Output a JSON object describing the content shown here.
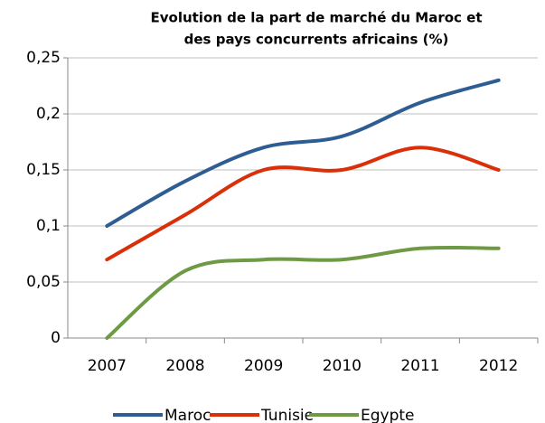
{
  "chart_data": {
    "type": "line",
    "title": [
      "Evolution de la part de marché du Maroc et",
      "des pays concurrents africains (%)"
    ],
    "categories": [
      "2007",
      "2008",
      "2009",
      "2010",
      "2011",
      "2012"
    ],
    "series": [
      {
        "name": "Maroc",
        "color": "#2e5d93",
        "values": [
          0.1,
          0.14,
          0.17,
          0.18,
          0.21,
          0.23
        ]
      },
      {
        "name": "Tunisie",
        "color": "#d9300a",
        "values": [
          0.07,
          0.11,
          0.15,
          0.15,
          0.17,
          0.15
        ]
      },
      {
        "name": "Egypte",
        "color": "#6e9a45",
        "values": [
          0,
          0.06,
          0.07,
          0.07,
          0.08,
          0.08
        ]
      }
    ],
    "ylim": [
      0,
      0.25
    ],
    "yticks": [
      0,
      {
        "value": 0.05,
        "label": "0,05"
      },
      {
        "value": 0.1,
        "label": "0,1"
      },
      {
        "value": 0.15,
        "label": "0,15"
      },
      {
        "value": 0.2,
        "label": "0,2"
      },
      {
        "value": 0.25,
        "label": "0,25"
      }
    ],
    "grid": true,
    "legend": "bottom"
  }
}
